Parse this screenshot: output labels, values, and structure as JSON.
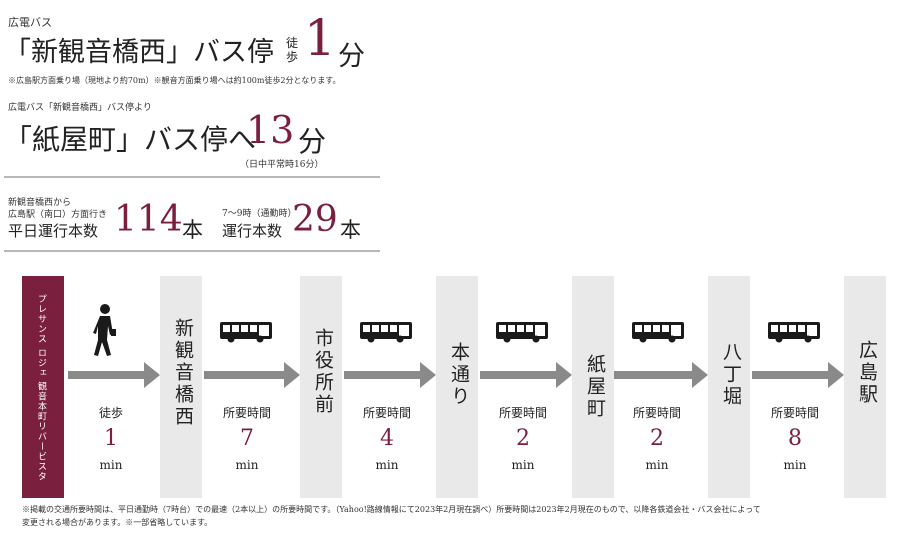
{
  "header": {
    "line1_label": "広電バス",
    "stop_name": "「新観音橋西」バス停",
    "walk_label_top": "徒",
    "walk_label_bottom": "歩",
    "walk_minutes": "1",
    "walk_unit": "分",
    "note1": "※広島駅方面乗り場（現地より約70m）※観音方面乗り場へは約100m徒歩2分となります。",
    "line2_label": "広電バス「新観音橋西」バス停より",
    "dest_name": "「紙屋町」バス停へ",
    "dest_minutes": "13",
    "dest_unit": "分",
    "dest_note": "（日中平常時16分）"
  },
  "stats": {
    "s1_label_a": "新観音橋西から",
    "s1_label_b": "広島駅（南口）方面行き",
    "s1_label_c": "平日運行本数",
    "s1_value": "114",
    "s1_unit": "本",
    "s2_label_a": "7～9時（通勤時）",
    "s2_label_c": "運行本数",
    "s2_value": "29",
    "s2_unit": "本"
  },
  "route": {
    "origin": "プレサンス ロジェ 観音本町リバービスタ",
    "stops": [
      "新観音橋西",
      "市役所前",
      "本通り",
      "紙屋町",
      "八丁堀",
      "広島駅"
    ],
    "segments": [
      {
        "label": "徒歩",
        "value": "1",
        "unit": "min",
        "icon": "walking-person-icon"
      },
      {
        "label": "所要時間",
        "value": "7",
        "unit": "min",
        "icon": "bus-icon"
      },
      {
        "label": "所要時間",
        "value": "4",
        "unit": "min",
        "icon": "bus-icon"
      },
      {
        "label": "所要時間",
        "value": "2",
        "unit": "min",
        "icon": "bus-icon"
      },
      {
        "label": "所要時間",
        "value": "2",
        "unit": "min",
        "icon": "bus-icon"
      },
      {
        "label": "所要時間",
        "value": "8",
        "unit": "min",
        "icon": "bus-icon"
      }
    ]
  },
  "footnote1": "※掲載の交通所要時間は、平日通勤時（7時台）での最速（2本以上）の所要時間です。（Yahoo!路線情報にて2023年2月現在調べ）所要時間は2023年2月現在のもので、以降各鉄道会社・バス会社によって",
  "footnote2": "変更される場合があります。※一部省略しています。",
  "colors": {
    "accent": "#7a1f3d",
    "box": "#e9e9e9",
    "arrow": "#8a8a8a",
    "rule": "#b8b8b8"
  }
}
